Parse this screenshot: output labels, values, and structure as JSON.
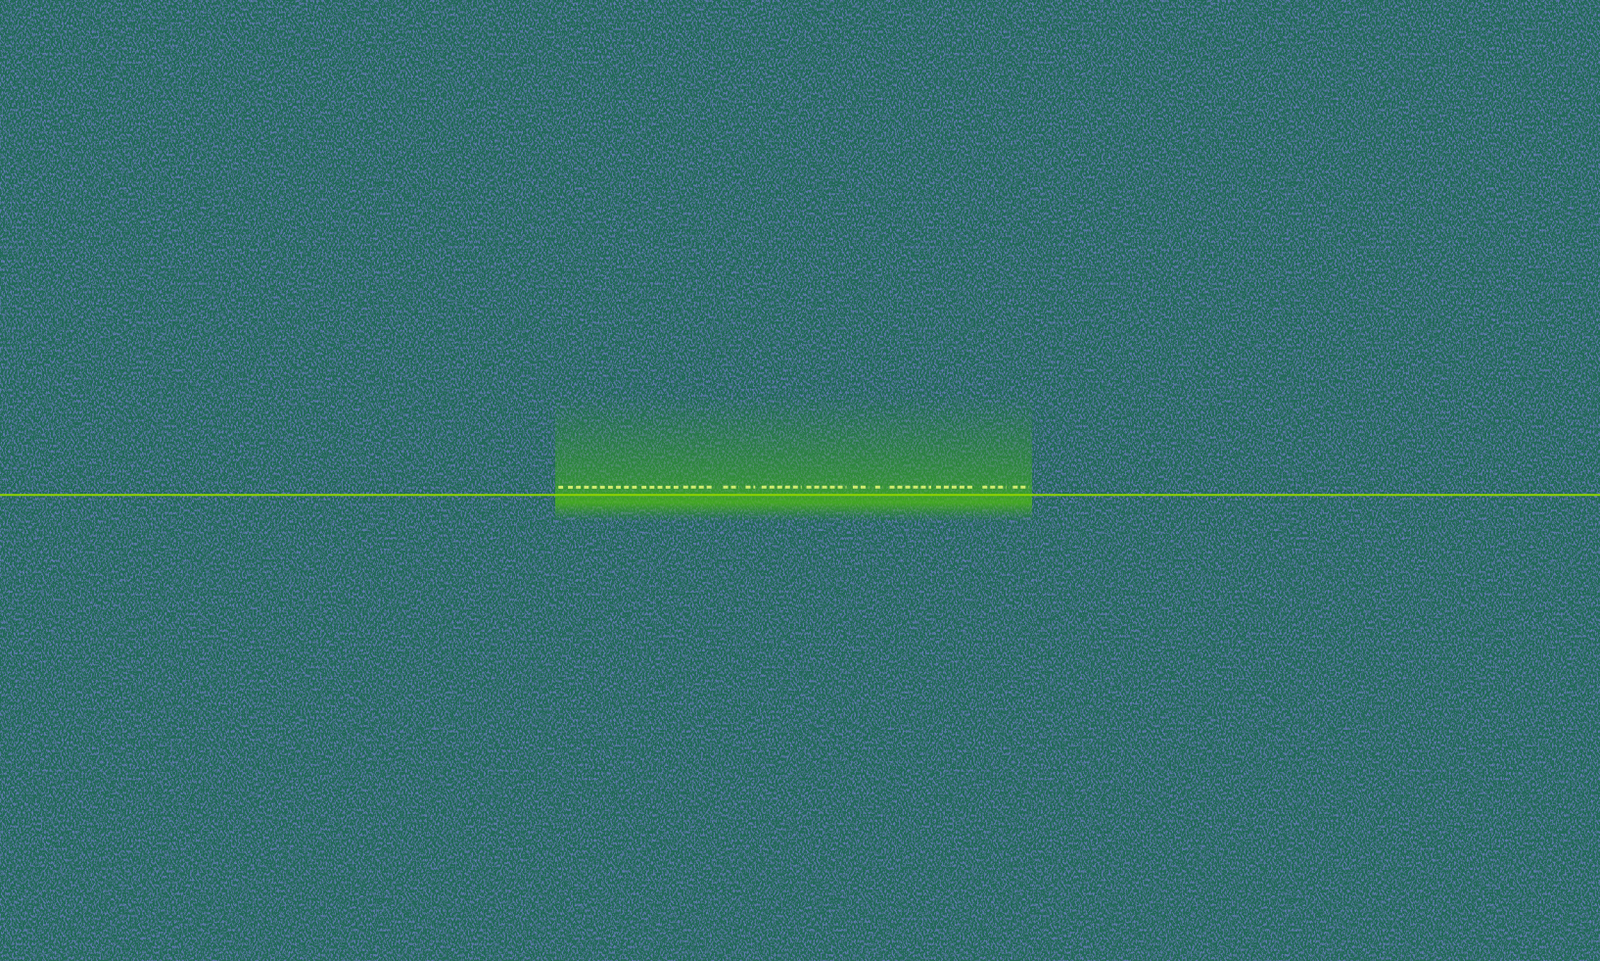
{
  "chart_data": {
    "type": "spectrogram",
    "tick_labels": false,
    "grid": false,
    "xlim": [
      0,
      1
    ],
    "ylim": [
      0,
      1
    ],
    "carrier_frequency": 0.485,
    "burst": [
      0.347,
      0.645
    ],
    "pulse_frequency": 0.493,
    "pulses": [
      [
        0.349,
        0.352
      ],
      [
        0.355,
        0.358
      ],
      [
        0.36,
        0.363
      ],
      [
        0.365,
        0.368
      ],
      [
        0.37,
        0.373
      ],
      [
        0.375,
        0.378
      ],
      [
        0.38,
        0.383
      ],
      [
        0.385,
        0.388
      ],
      [
        0.39,
        0.393
      ],
      [
        0.395,
        0.398
      ],
      [
        0.401,
        0.404
      ],
      [
        0.406,
        0.409
      ],
      [
        0.411,
        0.414
      ],
      [
        0.416,
        0.419
      ],
      [
        0.421,
        0.424
      ],
      [
        0.427,
        0.446
      ],
      [
        0.452,
        0.462
      ],
      [
        0.466,
        0.472
      ],
      [
        0.476,
        0.501
      ],
      [
        0.504,
        0.529
      ],
      [
        0.533,
        0.543
      ],
      [
        0.547,
        0.552
      ],
      [
        0.556,
        0.582
      ],
      [
        0.585,
        0.609
      ],
      [
        0.614,
        0.629
      ],
      [
        0.633,
        0.643
      ]
    ],
    "color": "#8fd400"
  }
}
